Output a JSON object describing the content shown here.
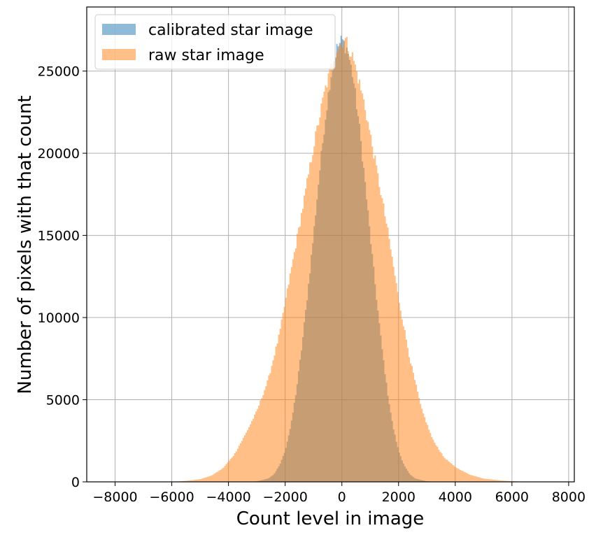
{
  "chart_data": {
    "type": "histogram",
    "xlabel": "Count level in image",
    "ylabel": "Number of pixels with that count",
    "xlim": [
      -9000,
      8200
    ],
    "ylim": [
      0,
      28900
    ],
    "xticks": [
      -8000,
      -6000,
      -4000,
      -2000,
      0,
      2000,
      4000,
      6000,
      8000
    ],
    "xtick_labels": [
      "−8000",
      "−6000",
      "−4000",
      "−2000",
      "0",
      "2000",
      "4000",
      "6000",
      "8000"
    ],
    "yticks": [
      0,
      5000,
      10000,
      15000,
      20000,
      25000
    ],
    "ytick_labels": [
      "0",
      "5000",
      "10000",
      "15000",
      "20000",
      "25000"
    ],
    "grid": true,
    "legend_position": "top-left",
    "series": [
      {
        "name": "calibrated star image",
        "color": "#1f77b4",
        "opacity": 0.5,
        "bin_width": 50,
        "x_range": [
          -3600,
          3800
        ],
        "points": [
          [
            -3600,
            0
          ],
          [
            -3000,
            30
          ],
          [
            -2600,
            200
          ],
          [
            -2400,
            450
          ],
          [
            -2200,
            1000
          ],
          [
            -2000,
            1900
          ],
          [
            -1800,
            3400
          ],
          [
            -1600,
            5600
          ],
          [
            -1400,
            8400
          ],
          [
            -1200,
            11600
          ],
          [
            -1000,
            15000
          ],
          [
            -800,
            18600
          ],
          [
            -600,
            21900
          ],
          [
            -400,
            24600
          ],
          [
            -200,
            26300
          ],
          [
            0,
            26900
          ],
          [
            200,
            26300
          ],
          [
            400,
            24600
          ],
          [
            600,
            21900
          ],
          [
            800,
            18600
          ],
          [
            1000,
            15000
          ],
          [
            1200,
            11600
          ],
          [
            1400,
            8400
          ],
          [
            1600,
            5600
          ],
          [
            1800,
            3400
          ],
          [
            2000,
            1900
          ],
          [
            2200,
            1000
          ],
          [
            2400,
            450
          ],
          [
            2600,
            200
          ],
          [
            3000,
            30
          ],
          [
            3800,
            0
          ]
        ]
      },
      {
        "name": "raw star image",
        "color": "#ff7f0e",
        "opacity": 0.5,
        "bin_width": 50,
        "x_range": [
          -6000,
          7400
        ],
        "points": [
          [
            -6000,
            0
          ],
          [
            -5500,
            60
          ],
          [
            -5000,
            160
          ],
          [
            -4600,
            380
          ],
          [
            -4200,
            820
          ],
          [
            -3800,
            1650
          ],
          [
            -3400,
            2900
          ],
          [
            -3000,
            4300
          ],
          [
            -2600,
            6200
          ],
          [
            -2200,
            9000
          ],
          [
            -1800,
            12800
          ],
          [
            -1400,
            16500
          ],
          [
            -1000,
            20400
          ],
          [
            -600,
            23800
          ],
          [
            -200,
            26300
          ],
          [
            100,
            27000
          ],
          [
            400,
            25800
          ],
          [
            800,
            23000
          ],
          [
            1200,
            19300
          ],
          [
            1600,
            15500
          ],
          [
            2000,
            11200
          ],
          [
            2400,
            7500
          ],
          [
            2800,
            4500
          ],
          [
            3200,
            2600
          ],
          [
            3600,
            1500
          ],
          [
            4000,
            900
          ],
          [
            4500,
            450
          ],
          [
            5000,
            200
          ],
          [
            5600,
            80
          ],
          [
            6200,
            25
          ],
          [
            7400,
            0
          ]
        ]
      }
    ]
  }
}
